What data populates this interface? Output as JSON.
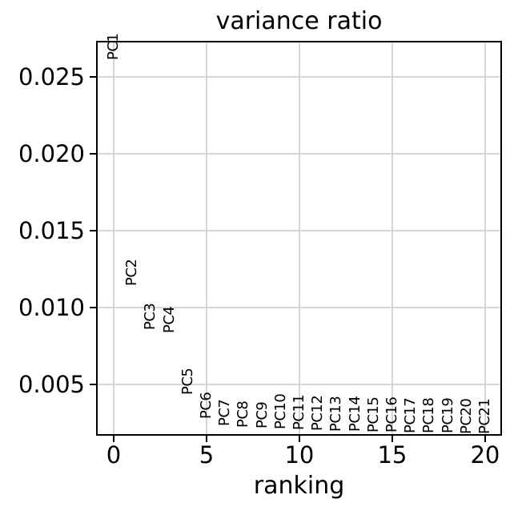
{
  "chart_data": {
    "type": "scatter",
    "title": "variance ratio",
    "xlabel": "ranking",
    "ylabel": "",
    "annotation_style": "rotated-text-90deg-anchored-at-point",
    "labels": [
      "PC1",
      "PC2",
      "PC3",
      "PC4",
      "PC5",
      "PC6",
      "PC7",
      "PC8",
      "PC9",
      "PC10",
      "PC11",
      "PC12",
      "PC13",
      "PC14",
      "PC15",
      "PC16",
      "PC17",
      "PC18",
      "PC19",
      "PC20",
      "PC21"
    ],
    "x": [
      0,
      1,
      2,
      3,
      4,
      5,
      6,
      7,
      8,
      9,
      10,
      11,
      12,
      13,
      14,
      15,
      16,
      17,
      18,
      19,
      20
    ],
    "values": [
      0.0261,
      0.0114,
      0.00852,
      0.00831,
      0.00432,
      0.00276,
      0.00231,
      0.00221,
      0.00214,
      0.00208,
      0.00203,
      0.00198,
      0.00194,
      0.00191,
      0.00188,
      0.00186,
      0.00184,
      0.00182,
      0.0018,
      0.00178,
      0.00176
    ],
    "xticks": [
      0,
      5,
      10,
      15,
      20
    ],
    "xticklabels": [
      "0",
      "5",
      "10",
      "15",
      "20"
    ],
    "yticks": [
      0.005,
      0.01,
      0.015,
      0.02,
      0.025
    ],
    "yticklabels": [
      "0.005",
      "0.010",
      "0.015",
      "0.020",
      "0.025"
    ],
    "xlim": [
      -0.905,
      20.866
    ],
    "ylim": [
      0.00172,
      0.02729
    ],
    "grid": true,
    "legend": "none"
  },
  "colors": {
    "background": "#ffffff",
    "text": "#000000",
    "spine": "#000000",
    "grid": "#d6d6d6"
  }
}
